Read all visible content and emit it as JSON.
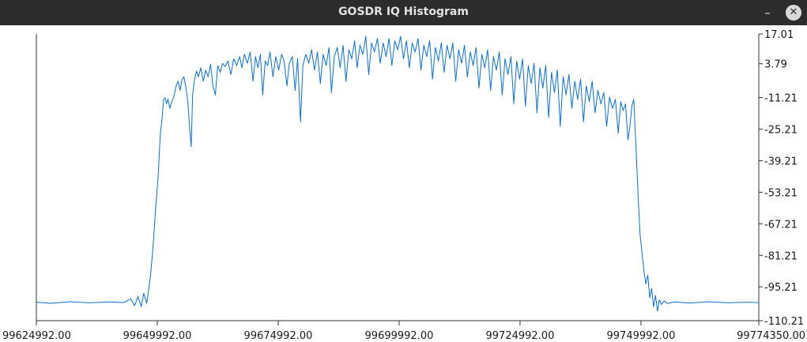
{
  "window": {
    "title": "GOSDR IQ Histogram",
    "minimize_glyph": "–",
    "close_glyph": "✕"
  },
  "colors": {
    "titlebar": "#2c2c2c",
    "line": "#0a6fd6",
    "axis": "#333333"
  },
  "chart_data": {
    "type": "line",
    "xlim": [
      99624992.0,
      99774350.0
    ],
    "ylim": [
      -110.21,
      17.01
    ],
    "x_ticks": [
      {
        "value": 99624992.0,
        "label": "99624992.00"
      },
      {
        "value": 99649992.0,
        "label": "99649992.00"
      },
      {
        "value": 99674992.0,
        "label": "99674992.00"
      },
      {
        "value": 99699992.0,
        "label": "99699992.00"
      },
      {
        "value": 99724992.0,
        "label": "99724992.00"
      },
      {
        "value": 99749992.0,
        "label": "99749992.00"
      },
      {
        "value": 99774350.0,
        "label": "99774350.00"
      }
    ],
    "y_ticks": [
      {
        "value": 17.01,
        "label": "17.01"
      },
      {
        "value": 3.79,
        "label": "3.79"
      },
      {
        "value": -11.21,
        "label": "-11.21"
      },
      {
        "value": -25.21,
        "label": "-25.21"
      },
      {
        "value": -39.21,
        "label": "-39.21"
      },
      {
        "value": -53.21,
        "label": "-53.21"
      },
      {
        "value": -67.21,
        "label": "-67.21"
      },
      {
        "value": -81.21,
        "label": "-81.21"
      },
      {
        "value": -95.21,
        "label": "-95.21"
      },
      {
        "value": -110.21,
        "label": "-110.21"
      }
    ],
    "grid": false,
    "series": [
      {
        "points": [
          [
            99624992,
            -102
          ],
          [
            99628000,
            -102.5
          ],
          [
            99632000,
            -101.8
          ],
          [
            99636000,
            -102.3
          ],
          [
            99640000,
            -101.9
          ],
          [
            99643000,
            -102.2
          ],
          [
            99644500,
            -100.5
          ],
          [
            99645300,
            -103.5
          ],
          [
            99646000,
            -99.5
          ],
          [
            99646700,
            -104
          ],
          [
            99647200,
            -98
          ],
          [
            99647800,
            -102.5
          ],
          [
            99648200,
            -96.5
          ],
          [
            99648600,
            -90
          ],
          [
            99649100,
            -78
          ],
          [
            99649600,
            -62
          ],
          [
            99650200,
            -45
          ],
          [
            99650600,
            -28
          ],
          [
            99651000,
            -20
          ],
          [
            99651300,
            -12
          ],
          [
            99651600,
            -11.3
          ],
          [
            99651900,
            -14
          ],
          [
            99652200,
            -11.8
          ],
          [
            99652600,
            -16
          ],
          [
            99652900,
            -13.5
          ],
          [
            99653400,
            -11
          ],
          [
            99653900,
            -6
          ],
          [
            99654300,
            -4
          ],
          [
            99654700,
            -8
          ],
          [
            99655100,
            -3.5
          ],
          [
            99655500,
            -2
          ],
          [
            99655900,
            -6.5
          ],
          [
            99656300,
            -13
          ],
          [
            99656700,
            -25
          ],
          [
            99657000,
            -33
          ],
          [
            99657300,
            -10
          ],
          [
            99657700,
            -3
          ],
          [
            99658100,
            0.5
          ],
          [
            99658500,
            -2
          ],
          [
            99659000,
            2
          ],
          [
            99659500,
            -4
          ],
          [
            99660000,
            1
          ],
          [
            99660500,
            -2
          ],
          [
            99661000,
            3.5
          ],
          [
            99661500,
            -6
          ],
          [
            99662000,
            -10
          ],
          [
            99662500,
            3
          ],
          [
            99663000,
            0
          ],
          [
            99663500,
            4
          ],
          [
            99664000,
            2.5
          ],
          [
            99664600,
            5
          ],
          [
            99665200,
            -1
          ],
          [
            99665800,
            6
          ],
          [
            99666400,
            3
          ],
          [
            99667000,
            7
          ],
          [
            99667500,
            2
          ],
          [
            99668000,
            8
          ],
          [
            99668600,
            4
          ],
          [
            99669200,
            9
          ],
          [
            99669800,
            -4
          ],
          [
            99670300,
            7
          ],
          [
            99670800,
            2
          ],
          [
            99671300,
            8
          ],
          [
            99671800,
            -10
          ],
          [
            99672300,
            5
          ],
          [
            99672800,
            3
          ],
          [
            99673300,
            9
          ],
          [
            99673900,
            -2
          ],
          [
            99674500,
            7
          ],
          [
            99675100,
            1
          ],
          [
            99675700,
            8
          ],
          [
            99676200,
            5
          ],
          [
            99676800,
            -6
          ],
          [
            99677300,
            4
          ],
          [
            99677900,
            7
          ],
          [
            99678500,
            -8
          ],
          [
            99679000,
            6
          ],
          [
            99679600,
            -22
          ],
          [
            99680100,
            3
          ],
          [
            99680700,
            8
          ],
          [
            99681300,
            4
          ],
          [
            99681900,
            10
          ],
          [
            99682500,
            1
          ],
          [
            99683100,
            9
          ],
          [
            99683700,
            -5
          ],
          [
            99684300,
            8
          ],
          [
            99684900,
            3
          ],
          [
            99685500,
            11
          ],
          [
            99686000,
            -9
          ],
          [
            99686600,
            7
          ],
          [
            99687200,
            11
          ],
          [
            99687800,
            2
          ],
          [
            99688400,
            12
          ],
          [
            99689000,
            -4
          ],
          [
            99689600,
            10
          ],
          [
            99690200,
            6
          ],
          [
            99690800,
            14
          ],
          [
            99691300,
            2
          ],
          [
            99691900,
            12
          ],
          [
            99692500,
            8
          ],
          [
            99693100,
            16
          ],
          [
            99693700,
            -1
          ],
          [
            99694300,
            13
          ],
          [
            99694900,
            9
          ],
          [
            99695500,
            15
          ],
          [
            99696100,
            4
          ],
          [
            99696700,
            13
          ],
          [
            99697300,
            7
          ],
          [
            99697900,
            15
          ],
          [
            99698500,
            3
          ],
          [
            99699100,
            14
          ],
          [
            99699700,
            10
          ],
          [
            99700300,
            16
          ],
          [
            99700900,
            6
          ],
          [
            99701500,
            14
          ],
          [
            99702100,
            2
          ],
          [
            99702700,
            13
          ],
          [
            99703300,
            9
          ],
          [
            99703900,
            15
          ],
          [
            99704500,
            1
          ],
          [
            99705100,
            12
          ],
          [
            99705700,
            7
          ],
          [
            99706300,
            14
          ],
          [
            99706900,
            -3
          ],
          [
            99707500,
            11
          ],
          [
            99708100,
            5
          ],
          [
            99708700,
            13
          ],
          [
            99709300,
            0
          ],
          [
            99709900,
            12
          ],
          [
            99710500,
            6
          ],
          [
            99711100,
            13
          ],
          [
            99711700,
            -4
          ],
          [
            99712300,
            10
          ],
          [
            99712900,
            4
          ],
          [
            99713500,
            12
          ],
          [
            99714100,
            -2
          ],
          [
            99714700,
            9
          ],
          [
            99715300,
            3
          ],
          [
            99715900,
            11
          ],
          [
            99716500,
            -7
          ],
          [
            99717100,
            8
          ],
          [
            99717700,
            2
          ],
          [
            99718300,
            10
          ],
          [
            99718900,
            -8
          ],
          [
            99719500,
            7
          ],
          [
            99720100,
            1
          ],
          [
            99720700,
            9
          ],
          [
            99721300,
            -10
          ],
          [
            99721900,
            6
          ],
          [
            99722500,
            -1
          ],
          [
            99723100,
            7
          ],
          [
            99723700,
            -14
          ],
          [
            99724300,
            5
          ],
          [
            99724900,
            -3
          ],
          [
            99725500,
            6
          ],
          [
            99726100,
            -15
          ],
          [
            99726700,
            3
          ],
          [
            99727300,
            -5
          ],
          [
            99727900,
            4
          ],
          [
            99728500,
            -18
          ],
          [
            99729100,
            2
          ],
          [
            99729700,
            -7
          ],
          [
            99730300,
            3
          ],
          [
            99730900,
            -20
          ],
          [
            99731500,
            0
          ],
          [
            99732100,
            -9
          ],
          [
            99732700,
            1
          ],
          [
            99733300,
            -24
          ],
          [
            99733900,
            -2
          ],
          [
            99734500,
            -10
          ],
          [
            99735100,
            -1
          ],
          [
            99735700,
            -16
          ],
          [
            99736300,
            -4
          ],
          [
            99736900,
            -12
          ],
          [
            99737500,
            -3
          ],
          [
            99738100,
            -22
          ],
          [
            99738700,
            -6
          ],
          [
            99739300,
            -13
          ],
          [
            99739900,
            -4
          ],
          [
            99740500,
            -18
          ],
          [
            99741100,
            -8
          ],
          [
            99741700,
            -14
          ],
          [
            99742300,
            -9
          ],
          [
            99742900,
            -24
          ],
          [
            99743500,
            -11
          ],
          [
            99744100,
            -16
          ],
          [
            99744700,
            -12
          ],
          [
            99745300,
            -27
          ],
          [
            99745800,
            -13
          ],
          [
            99746300,
            -17
          ],
          [
            99746800,
            -14
          ],
          [
            99747300,
            -30
          ],
          [
            99747700,
            -24
          ],
          [
            99748100,
            -15
          ],
          [
            99748500,
            -12
          ],
          [
            99749000,
            -35
          ],
          [
            99749400,
            -55
          ],
          [
            99749800,
            -72
          ],
          [
            99750200,
            -80
          ],
          [
            99750600,
            -88
          ],
          [
            99751000,
            -94
          ],
          [
            99751400,
            -90
          ],
          [
            99751800,
            -100
          ],
          [
            99752200,
            -96
          ],
          [
            99752600,
            -104
          ],
          [
            99753000,
            -99
          ],
          [
            99753400,
            -106
          ],
          [
            99753800,
            -101
          ],
          [
            99754200,
            -103
          ],
          [
            99754800,
            -101.5
          ],
          [
            99755500,
            -102.6
          ],
          [
            99757000,
            -101.9
          ],
          [
            99760000,
            -102.4
          ],
          [
            99764000,
            -101.8
          ],
          [
            99768000,
            -102.3
          ],
          [
            99772000,
            -102
          ],
          [
            99774350,
            -102.2
          ]
        ]
      }
    ]
  }
}
